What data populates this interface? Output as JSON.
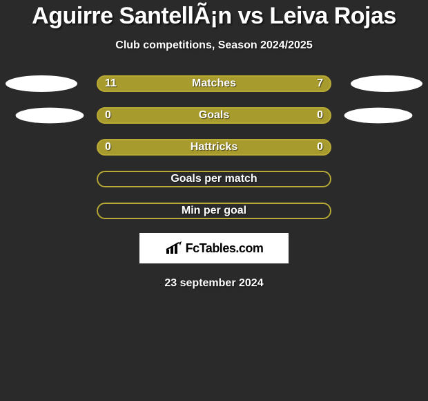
{
  "title": "Aguirre SantellÃ¡n vs Leiva Rojas",
  "subtitle": "Club competitions, Season 2024/2025",
  "date": "23 september 2024",
  "logo_text": "FcTables.com",
  "colors": {
    "accent": "#a89b2e",
    "accent_border": "#b8aa34",
    "background": "#2a2a2a",
    "text": "#ffffff",
    "shadow_ellipse": "#ffffff"
  },
  "stats": [
    {
      "label": "Matches",
      "left_val": "11",
      "right_val": "7",
      "left_pct": 61,
      "right_pct": 39,
      "show_shadows": true,
      "shadow_style": 1
    },
    {
      "label": "Goals",
      "left_val": "0",
      "right_val": "0",
      "left_pct": 50,
      "right_pct": 50,
      "show_shadows": true,
      "shadow_style": 2
    },
    {
      "label": "Hattricks",
      "left_val": "0",
      "right_val": "0",
      "left_pct": 50,
      "right_pct": 50,
      "show_shadows": false
    },
    {
      "label": "Goals per match",
      "left_val": "",
      "right_val": "",
      "left_pct": 0,
      "right_pct": 0,
      "show_shadows": false
    },
    {
      "label": "Min per goal",
      "left_val": "",
      "right_val": "",
      "left_pct": 0,
      "right_pct": 0,
      "show_shadows": false
    }
  ]
}
